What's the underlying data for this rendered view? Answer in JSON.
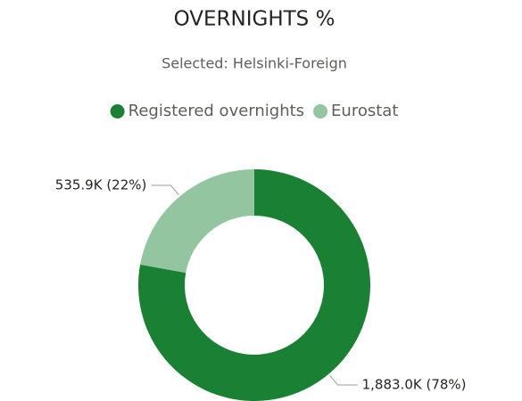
{
  "chart_data": {
    "type": "donut",
    "title": "OVERNIGHTS %",
    "subtitle": "Selected: Helsinki-Foreign",
    "categories": [
      "Registered overnights",
      "Eurostat"
    ],
    "values": [
      1883.0,
      535.9
    ],
    "value_labels": [
      "1,883.0K (78%)",
      "535.9K (22%)"
    ],
    "colors": [
      "#1a8033",
      "#93c6a0"
    ],
    "legend": "top"
  }
}
